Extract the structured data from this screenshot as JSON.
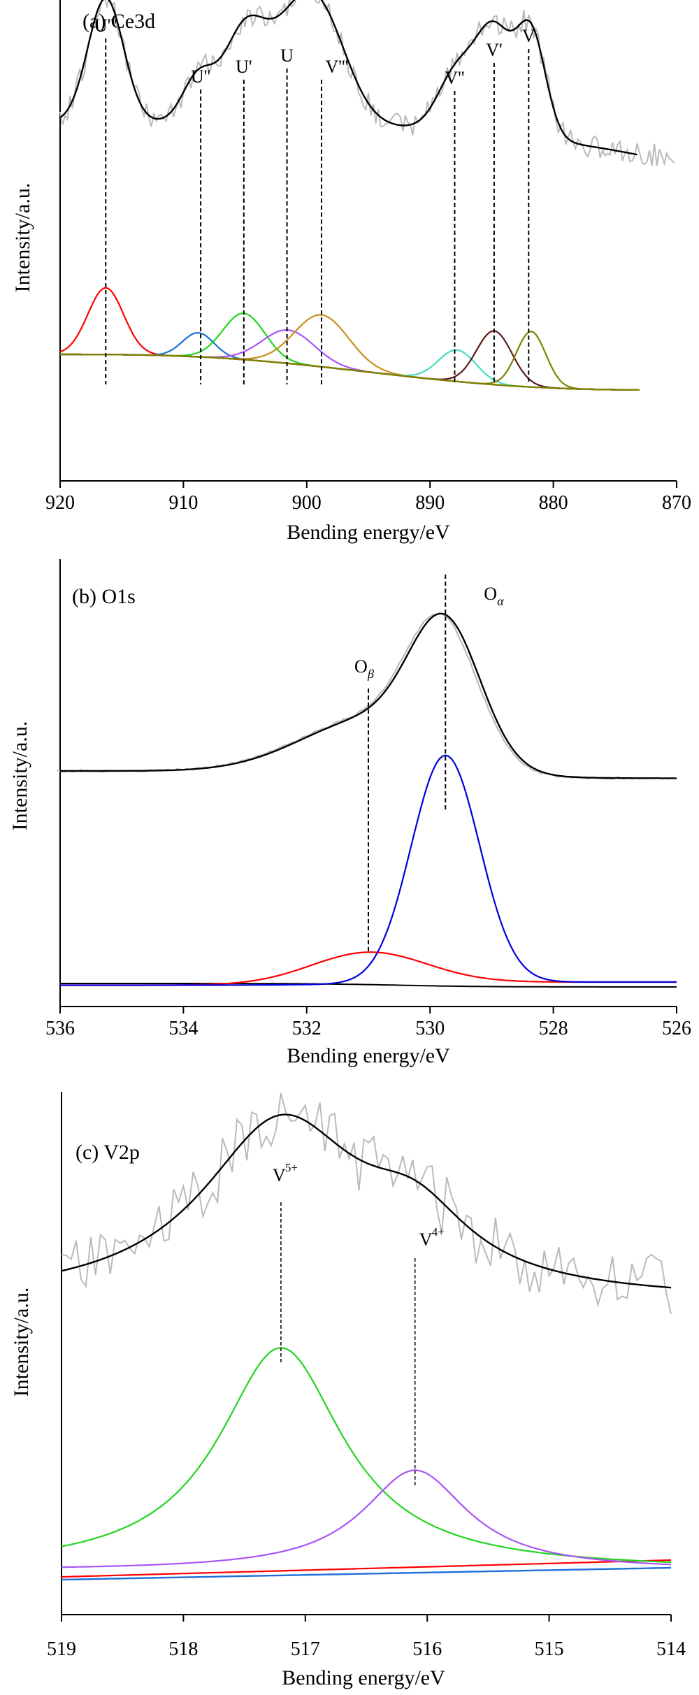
{
  "chart_data": [
    {
      "type": "line",
      "title": "(a) Ce3d",
      "xlabel": "Bending energy/eV",
      "ylabel": "Intensity/a.u.",
      "xlim": [
        920,
        870
      ],
      "x_reversed": true,
      "x_ticks": [
        "920",
        "910",
        "900",
        "890",
        "880",
        "870"
      ],
      "y_ticks_shown": false,
      "peak_labels": [
        {
          "name": "U'''",
          "x": 916.3
        },
        {
          "name": "U''",
          "x": 908.6
        },
        {
          "name": "U'",
          "x": 905.1
        },
        {
          "name": "U",
          "x": 901.6
        },
        {
          "name": "V'''",
          "x": 898.8
        },
        {
          "name": "V''",
          "x": 888.0
        },
        {
          "name": "V'",
          "x": 884.8
        },
        {
          "name": "V",
          "x": 882.0
        }
      ],
      "series": [
        {
          "role": "raw",
          "color": "#b8bcb8",
          "x_range": [
            920,
            870
          ],
          "level": 0.82,
          "noise": 0.06
        },
        {
          "role": "fit-envelope",
          "color": "#000000",
          "x_range": [
            920,
            873
          ],
          "level": 0.8
        },
        {
          "role": "background",
          "color": "#808000",
          "x_range": [
            920,
            873
          ],
          "start": 0.2,
          "end": 0.02
        },
        {
          "role": "component",
          "color": "#ff0000",
          "center": 916.3,
          "height": 0.36,
          "fwhm": 3.4
        },
        {
          "role": "component",
          "color": "#1e6fd9",
          "center": 908.8,
          "height": 0.13,
          "fwhm": 3.0
        },
        {
          "role": "component",
          "color": "#22d522",
          "center": 905.1,
          "height": 0.25,
          "fwhm": 4.0
        },
        {
          "role": "component",
          "color": "#a855f7",
          "center": 901.5,
          "height": 0.18,
          "fwhm": 5.0
        },
        {
          "role": "component",
          "color": "#c8901c",
          "center": 898.8,
          "height": 0.28,
          "fwhm": 5.2
        },
        {
          "role": "component",
          "color": "#40e0c0",
          "center": 887.8,
          "height": 0.17,
          "fwhm": 3.6
        },
        {
          "role": "component",
          "color": "#5c1a1a",
          "center": 884.8,
          "height": 0.29,
          "fwhm": 3.4
        },
        {
          "role": "component",
          "color": "#808000",
          "center": 881.8,
          "height": 0.3,
          "fwhm": 2.8
        }
      ]
    },
    {
      "type": "line",
      "title": "(b) O1s",
      "xlabel": "Bending energy/eV",
      "ylabel": "Intensity/a.u.",
      "xlim": [
        536,
        526
      ],
      "x_reversed": true,
      "x_ticks": [
        "536",
        "534",
        "532",
        "530",
        "528",
        "526"
      ],
      "y_ticks_shown": false,
      "peak_labels": [
        {
          "name": "O",
          "sub": "β",
          "x": 531.0
        },
        {
          "name": "O",
          "sub": "α",
          "x": 529.75
        }
      ],
      "series": [
        {
          "role": "raw",
          "color": "#b8bcb8",
          "x_range": [
            536,
            526
          ]
        },
        {
          "role": "fit-envelope",
          "color": "#000000",
          "x_range": [
            536,
            526
          ]
        },
        {
          "role": "background",
          "color": "#000000",
          "x_range": [
            536,
            526
          ]
        },
        {
          "role": "component",
          "color": "#ff0000",
          "center": 531.0,
          "height": 0.18,
          "fwhm": 2.2
        },
        {
          "role": "component",
          "color": "#0000dd",
          "center": 529.75,
          "height": 1.0,
          "fwhm": 1.3
        }
      ]
    },
    {
      "type": "line",
      "title": "(c) V2p",
      "xlabel": "Bending energy/eV",
      "ylabel": "Intensity/a.u.",
      "xlim": [
        519,
        514
      ],
      "x_reversed": true,
      "x_ticks": [
        "519",
        "518",
        "517",
        "516",
        "515",
        "514"
      ],
      "y_ticks_shown": false,
      "peak_labels": [
        {
          "name": "V",
          "sup": "5+",
          "x": 517.2
        },
        {
          "name": "V",
          "sup": "4+",
          "x": 516.1
        }
      ],
      "series": [
        {
          "role": "raw",
          "color": "#b8bcb8",
          "x_range": [
            519,
            514
          ]
        },
        {
          "role": "fit-envelope",
          "color": "#000000",
          "x_range": [
            519,
            514
          ]
        },
        {
          "role": "background",
          "color": "#ff0000",
          "x_range": [
            519,
            514
          ]
        },
        {
          "role": "background",
          "color": "#1e6fd9",
          "x_range": [
            519,
            514
          ]
        },
        {
          "role": "component",
          "color": "#22d522",
          "center": 517.2,
          "height": 1.0,
          "fwhm": 1.2
        },
        {
          "role": "component",
          "color": "#a855f7",
          "center": 516.1,
          "height": 0.45,
          "fwhm": 1.0
        }
      ]
    }
  ]
}
